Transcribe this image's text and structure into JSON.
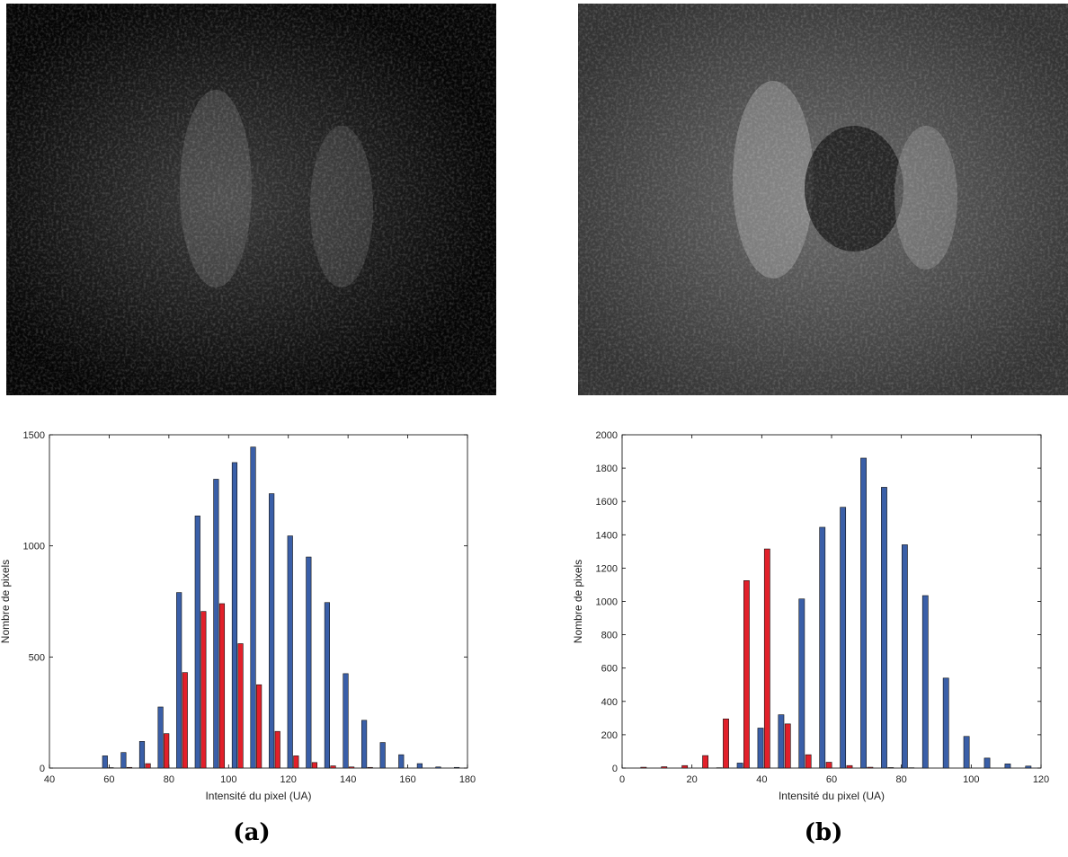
{
  "chart_data": [
    {
      "type": "bar",
      "xlabel": "Intensité du pixel (UA)",
      "ylabel": "Nombre de pixels",
      "x": [
        59.6,
        65.8,
        72,
        78.2,
        84.4,
        90.6,
        96.8,
        103,
        109.2,
        115.4,
        121.6,
        127.8,
        134,
        140.2,
        146.4,
        152.6,
        158.8,
        165,
        171.2,
        177.4
      ],
      "series": [
        {
          "color": "#3a5fa8",
          "values": [
            55,
            70,
            120,
            275,
            790,
            1135,
            1300,
            1375,
            1445,
            1235,
            1045,
            950,
            745,
            425,
            215,
            115,
            60,
            20,
            5,
            3
          ]
        },
        {
          "color": "#e2202a",
          "values": [
            2,
            3,
            20,
            155,
            430,
            705,
            740,
            560,
            375,
            165,
            55,
            25,
            10,
            5,
            3,
            0,
            0,
            0,
            0,
            0
          ]
        }
      ],
      "xlim": [
        40,
        180
      ],
      "xticks": [
        40,
        60,
        80,
        100,
        120,
        140,
        160,
        180
      ],
      "ylim": [
        0,
        1500
      ],
      "yticks": [
        0,
        500,
        1000,
        1500
      ]
    },
    {
      "type": "bar",
      "xlabel": "Intensité du pixel (UA)",
      "ylabel": "Nombre de pixels",
      "x": [
        5.2,
        11.1,
        17,
        22.9,
        28.8,
        34.7,
        40.6,
        46.5,
        52.4,
        58.3,
        64.2,
        70.1,
        76,
        81.9,
        87.8,
        93.7,
        99.6,
        105.5,
        111.4,
        117.3
      ],
      "series": [
        {
          "color": "#3a5fa8",
          "values": [
            0,
            0,
            0,
            0,
            2,
            30,
            240,
            320,
            1015,
            1445,
            1565,
            1860,
            1685,
            1340,
            1035,
            540,
            190,
            60,
            25,
            12
          ]
        },
        {
          "color": "#e2202a",
          "values": [
            5,
            8,
            15,
            75,
            295,
            1125,
            1315,
            265,
            80,
            35,
            15,
            5,
            3,
            2,
            0,
            0,
            0,
            0,
            0,
            0
          ]
        }
      ],
      "xlim": [
        0,
        120
      ],
      "xticks": [
        0,
        20,
        40,
        60,
        80,
        100,
        120
      ],
      "ylim": [
        0,
        2000
      ],
      "yticks": [
        0,
        200,
        400,
        600,
        800,
        1000,
        1200,
        1400,
        1600,
        1800,
        2000
      ]
    }
  ],
  "captions": [
    "(a)",
    "(b)"
  ]
}
